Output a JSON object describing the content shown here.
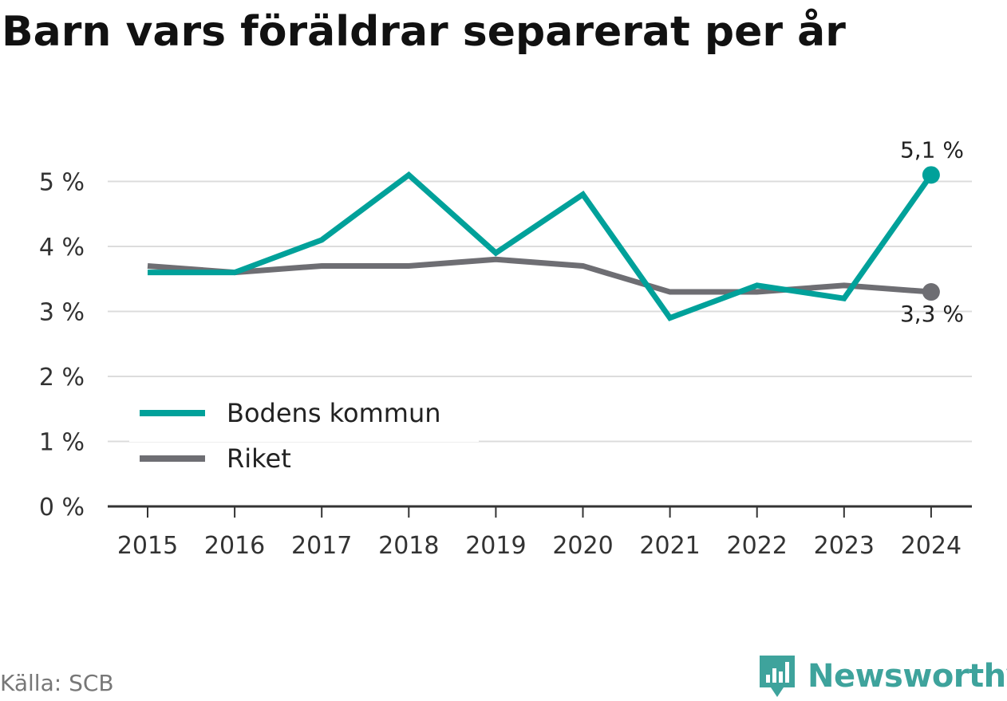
{
  "chart_data": {
    "type": "line",
    "title": "Barn vars föräldrar separerat per år",
    "categories": [
      "2015",
      "2016",
      "2017",
      "2018",
      "2019",
      "2020",
      "2021",
      "2022",
      "2023",
      "2024"
    ],
    "series": [
      {
        "name": "Bodens kommun",
        "color": "#00a19a",
        "values": [
          3.6,
          3.6,
          4.1,
          5.1,
          3.9,
          4.8,
          2.9,
          3.4,
          3.2,
          5.1
        ],
        "end_label": "5,1 %"
      },
      {
        "name": "Riket",
        "color": "#6e6e73",
        "values": [
          3.7,
          3.6,
          3.7,
          3.7,
          3.8,
          3.7,
          3.3,
          3.3,
          3.4,
          3.3
        ],
        "end_label": "3,3 %"
      }
    ],
    "y_ticks": [
      0,
      1,
      2,
      3,
      4,
      5
    ],
    "y_tick_labels": [
      "0 %",
      "1 %",
      "2 %",
      "3 %",
      "4 %",
      "5 %"
    ],
    "ylim": [
      0,
      5.1
    ],
    "grid": true,
    "legend_position": "bottom-left"
  },
  "footer": {
    "source": "Källa: SCB",
    "brand": "Newsworthy",
    "brand_icon": "newsworthy-logo-icon"
  }
}
